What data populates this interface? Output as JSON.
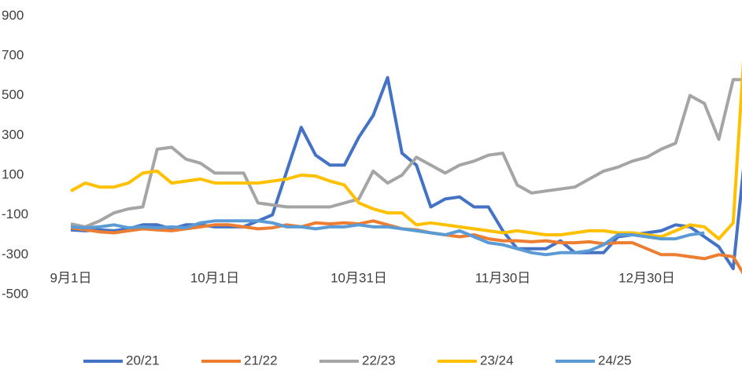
{
  "chart_data": {
    "type": "line",
    "categories": [
      "9月1日",
      null,
      null,
      null,
      null,
      null,
      null,
      null,
      null,
      null,
      "10月1日",
      null,
      null,
      null,
      null,
      null,
      null,
      null,
      null,
      null,
      "10月31日",
      null,
      null,
      null,
      null,
      null,
      null,
      null,
      null,
      null,
      "11月30日",
      null,
      null,
      null,
      null,
      null,
      null,
      null,
      null,
      null,
      "12月30日",
      null,
      null,
      null,
      null,
      null,
      null,
      null
    ],
    "ylim": [
      -500,
      980
    ],
    "yticks": [
      -500,
      -300,
      -100,
      100,
      300,
      500,
      700,
      900
    ],
    "legend": "bottom",
    "series": [
      {
        "name": "20/21",
        "color": "#4472c4",
        "values": [
          -175,
          -180,
          -175,
          -180,
          -170,
          -150,
          -150,
          -170,
          -150,
          -150,
          -160,
          -160,
          -160,
          -130,
          -100,
          120,
          340,
          200,
          150,
          150,
          290,
          400,
          590,
          210,
          150,
          -60,
          -20,
          -10,
          -60,
          -60,
          -180,
          -270,
          -270,
          -270,
          -230,
          -290,
          -290,
          -290,
          -210,
          -200,
          -190,
          -180,
          -150,
          -160,
          -210,
          -260,
          -370,
          330
        ]
      },
      {
        "name": "21/22",
        "color": "#ed7d31",
        "values": [
          -165,
          -175,
          -185,
          -190,
          -180,
          -170,
          -175,
          -180,
          -170,
          -160,
          -150,
          -150,
          -160,
          -170,
          -165,
          -150,
          -160,
          -140,
          -145,
          -140,
          -145,
          -130,
          -150,
          -170,
          -175,
          -190,
          -200,
          -210,
          -200,
          -220,
          -230,
          -230,
          -235,
          -230,
          -240,
          -240,
          -235,
          -245,
          -240,
          -240,
          -270,
          -300,
          -300,
          -310,
          -320,
          -300,
          -310,
          -430
        ]
      },
      {
        "name": "22/23",
        "color": "#a5a5a5",
        "values": [
          -145,
          -160,
          -130,
          -90,
          -70,
          -60,
          230,
          240,
          180,
          160,
          110,
          110,
          110,
          -40,
          -50,
          -60,
          -60,
          -60,
          -60,
          -40,
          -20,
          120,
          60,
          100,
          190,
          150,
          110,
          150,
          170,
          200,
          210,
          50,
          10,
          20,
          30,
          40,
          80,
          120,
          140,
          170,
          190,
          230,
          260,
          500,
          460,
          280,
          580,
          580
        ]
      },
      {
        "name": "23/24",
        "color": "#ffc000",
        "values": [
          20,
          60,
          40,
          40,
          60,
          110,
          120,
          60,
          70,
          80,
          60,
          60,
          60,
          60,
          70,
          80,
          100,
          95,
          70,
          50,
          -40,
          -70,
          -90,
          -90,
          -150,
          -140,
          -150,
          -160,
          -170,
          -180,
          -190,
          -180,
          -190,
          -200,
          -200,
          -190,
          -180,
          -180,
          -190,
          -190,
          -200,
          -210,
          -180,
          -150,
          -160,
          -220,
          -140,
          990
        ]
      },
      {
        "name": "24/25",
        "color": "#5b9bd5",
        "values": [
          -160,
          -165,
          -160,
          -150,
          -165,
          -160,
          -165,
          -160,
          -165,
          -140,
          -130,
          -130,
          -130,
          -130,
          -140,
          -160,
          -160,
          -170,
          -160,
          -160,
          -150,
          -160,
          -160,
          -170,
          -180,
          -190,
          -200,
          -180,
          -210,
          -240,
          -250,
          -270,
          -290,
          -300,
          -290,
          -290,
          -280,
          -250,
          -200,
          -200,
          -210,
          -220,
          -220,
          -200,
          -190,
          null,
          null,
          null
        ]
      }
    ]
  }
}
